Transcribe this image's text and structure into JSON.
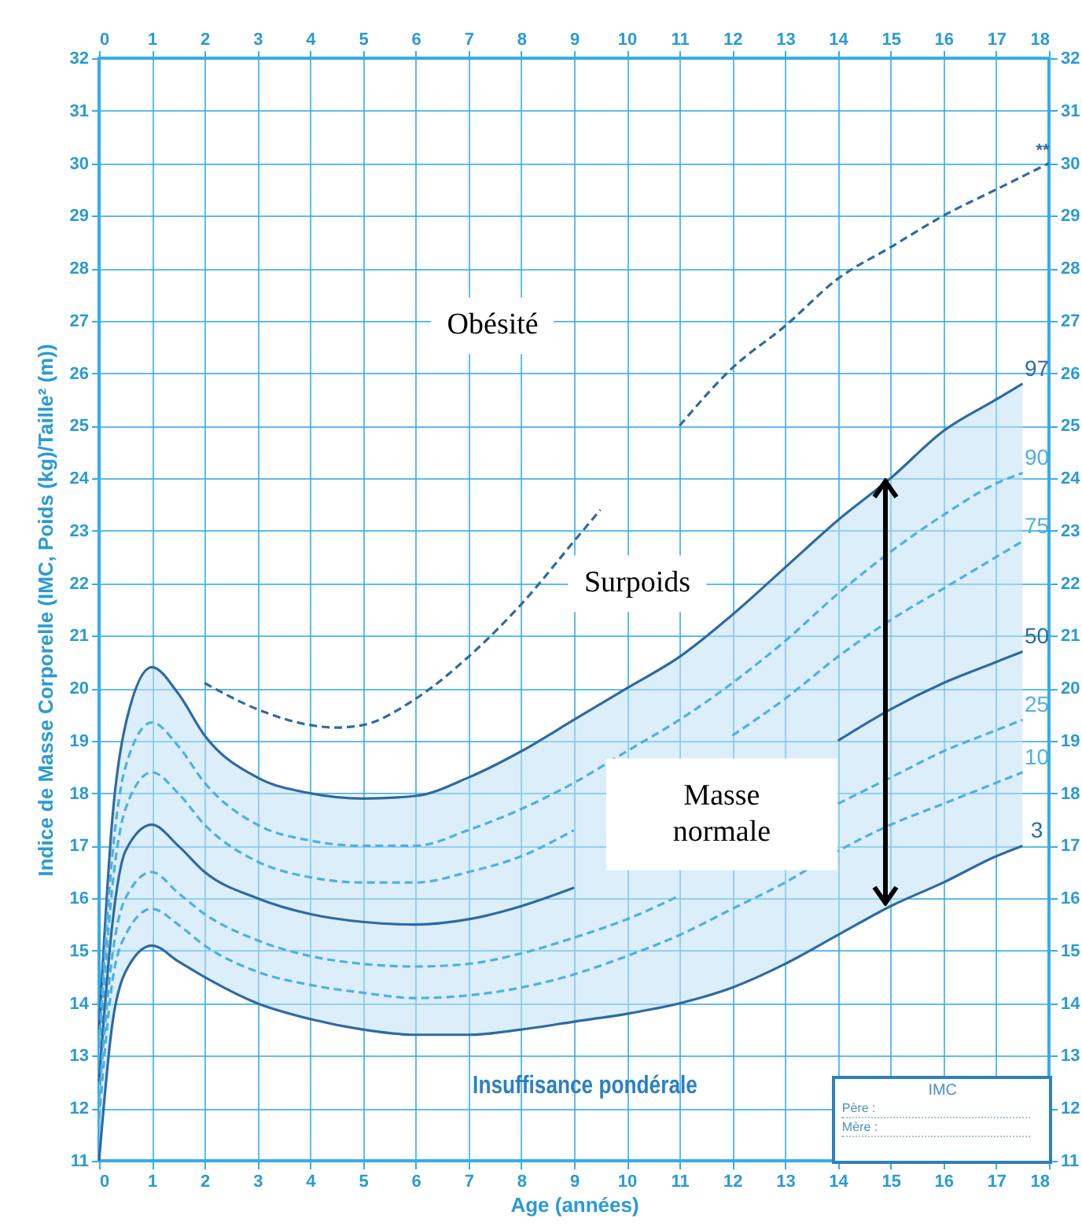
{
  "chart_data": {
    "type": "line",
    "xlabel": "Age (années)",
    "ylabel": "Indice de Masse Corporelle (IMC, Poids (kg)/Taille² (m))",
    "x": [
      0,
      0.25,
      0.5,
      1,
      1.5,
      2,
      3,
      4,
      5,
      6,
      7,
      8,
      9,
      10,
      11,
      12,
      13,
      14,
      15,
      16,
      17,
      17.5
    ],
    "series": [
      {
        "name": "97",
        "color": "#2e6aa3",
        "line_style": "solid",
        "values": [
          13.5,
          17.5,
          19.3,
          20.4,
          19.9,
          19.1,
          18.3,
          18.0,
          17.9,
          17.95,
          18.3,
          18.8,
          19.4,
          20.0,
          20.6,
          21.4,
          22.3,
          23.2,
          24.0,
          24.9,
          25.5,
          25.8
        ]
      },
      {
        "name": "90",
        "color": "#4fb0de",
        "line_style": "dashed",
        "values": [
          13.2,
          16.8,
          18.5,
          19.35,
          18.9,
          18.2,
          17.4,
          17.1,
          17.0,
          17.0,
          17.3,
          17.7,
          18.2,
          18.8,
          19.4,
          20.1,
          20.9,
          21.8,
          22.6,
          23.3,
          23.9,
          24.1
        ]
      },
      {
        "name": "75",
        "color": "#4fb0de",
        "line_style": "dashed",
        "values": [
          12.9,
          16.2,
          17.7,
          18.4,
          18.0,
          17.4,
          16.7,
          16.4,
          16.3,
          16.3,
          16.5,
          16.8,
          17.3,
          null,
          null,
          19.1,
          19.8,
          20.6,
          21.3,
          21.9,
          22.5,
          22.8
        ]
      },
      {
        "name": "50",
        "color": "#2e6aa3",
        "line_style": "solid",
        "values": [
          12.5,
          15.5,
          16.9,
          17.4,
          17.0,
          16.5,
          16.0,
          15.7,
          15.55,
          15.5,
          15.6,
          15.85,
          16.2,
          null,
          null,
          null,
          null,
          19.0,
          19.6,
          20.1,
          20.5,
          20.7
        ],
        "lower": [
          11.0,
          13.6,
          14.6,
          15.1,
          14.8,
          14.5,
          14.0,
          13.7,
          13.5,
          13.4,
          13.4,
          13.5,
          13.65,
          13.8,
          14.0,
          14.3,
          14.75,
          15.3,
          15.85,
          16.3,
          16.8,
          17.0
        ],
        "upper": [
          13.5,
          17.5,
          19.3,
          20.4,
          19.9,
          19.1,
          18.3,
          18.0,
          17.9,
          17.95,
          18.3,
          18.8,
          19.4,
          20.0,
          20.6,
          21.4,
          22.3,
          23.2,
          24.0,
          24.9,
          25.5,
          25.8
        ]
      },
      {
        "name": "25",
        "color": "#4fb0de",
        "line_style": "dashed",
        "values": [
          12.2,
          14.9,
          16.0,
          16.5,
          16.1,
          15.7,
          15.2,
          14.9,
          14.75,
          14.7,
          14.75,
          14.95,
          15.25,
          15.6,
          16.05,
          null,
          null,
          17.8,
          18.3,
          18.8,
          19.2,
          19.4
        ]
      },
      {
        "name": "10",
        "color": "#4fb0de",
        "line_style": "dashed",
        "values": [
          11.8,
          14.4,
          15.3,
          15.8,
          15.5,
          15.1,
          14.6,
          14.35,
          14.2,
          14.1,
          14.15,
          14.3,
          14.55,
          14.9,
          15.3,
          15.8,
          16.3,
          16.9,
          17.4,
          17.8,
          18.2,
          18.4
        ]
      },
      {
        "name": "3",
        "color": "#2e6aa3",
        "line_style": "solid",
        "values": [
          11.0,
          13.6,
          14.6,
          15.1,
          14.8,
          14.5,
          14.0,
          13.7,
          13.5,
          13.4,
          13.4,
          13.5,
          13.65,
          13.8,
          14.0,
          14.3,
          14.75,
          15.3,
          15.85,
          16.3,
          16.8,
          17.0
        ]
      },
      {
        "color": "#2e6aa3",
        "line_style": "dashed",
        "x": [
          2,
          3,
          4,
          4.5,
          5,
          6,
          7,
          8,
          9,
          9.5,
          10,
          11,
          12,
          13,
          14,
          15,
          16,
          17,
          18
        ],
        "values": [
          20.1,
          19.6,
          19.3,
          19.25,
          19.3,
          19.8,
          20.6,
          21.6,
          22.8,
          23.4,
          null,
          25.0,
          26.1,
          26.9,
          27.8,
          28.4,
          29.0,
          29.5,
          30.0
        ]
      }
    ],
    "xlim": [
      0,
      18
    ],
    "xticks": [
      0,
      1,
      2,
      3,
      4,
      5,
      6,
      7,
      8,
      9,
      10,
      11,
      12,
      13,
      14,
      15,
      16,
      17,
      18
    ],
    "x2lim": [
      0,
      18
    ],
    "x2ticks": [
      0,
      1,
      2,
      3,
      4,
      5,
      6,
      7,
      8,
      9,
      10,
      11,
      12,
      13,
      14,
      15,
      16,
      17,
      18
    ],
    "ylim": [
      11,
      32
    ],
    "yticks": [
      11,
      12,
      13,
      14,
      15,
      16,
      17,
      18,
      19,
      20,
      21,
      22,
      23,
      24,
      25,
      26,
      27,
      28,
      29,
      30,
      31,
      32
    ],
    "y2lim": [
      11,
      32
    ],
    "y2ticks": [
      11,
      12,
      13,
      14,
      15,
      16,
      17,
      18,
      19,
      20,
      21,
      22,
      23,
      24,
      25,
      26,
      27,
      28,
      29,
      30,
      31,
      32
    ],
    "grid": true,
    "legend": false,
    "marker": "none",
    "annotations": [
      "Obésité",
      "Surpoids",
      "Masse normale",
      "Insuffisance pondérale",
      "IMC",
      "Père :",
      "Mère :",
      {
        "text": "**",
        "x": 18,
        "y": 30
      }
    ]
  }
}
